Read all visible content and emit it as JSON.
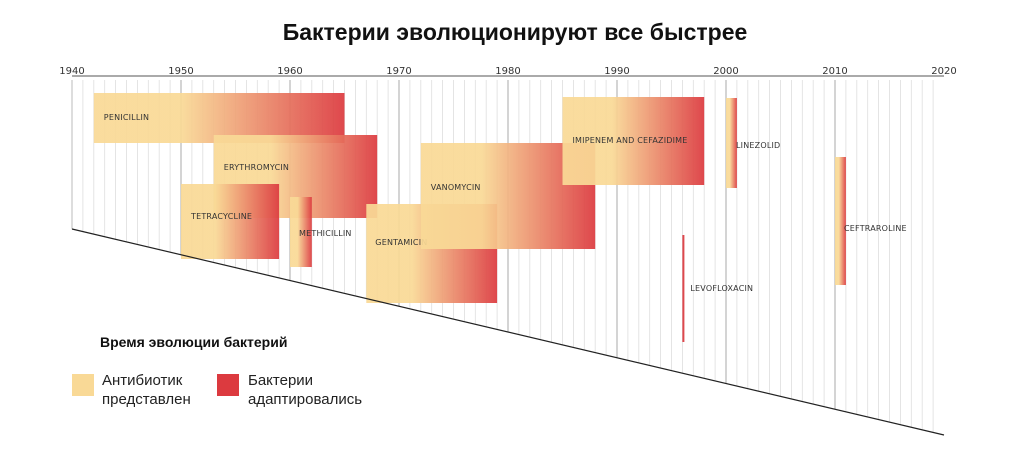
{
  "chart_data": {
    "type": "bar",
    "title": "Бактерии эволюционируют все быстрее",
    "x_ticks": [
      "1940",
      "1950",
      "1960",
      "1970",
      "1980",
      "1990",
      "2000",
      "2010",
      "2020"
    ],
    "xlim": [
      1940,
      2020
    ],
    "grid": true,
    "colors": {
      "introduced": "#f9d996",
      "resisted": "#dc3a3f"
    },
    "legend": {
      "title": "Время эволюции бактерий",
      "placement": "bottom-left",
      "introduced_line1": "Антибиотик",
      "introduced_line2": "представлен",
      "resisted_line1": "Бактерии",
      "resisted_line2": "адаптировались"
    },
    "antibiotics": [
      {
        "name": "PENICILLIN",
        "introduced": 1942,
        "resistance": 1965
      },
      {
        "name": "ERYTHROMYCIN",
        "introduced": 1953,
        "resistance": 1968
      },
      {
        "name": "TETRACYCLINE",
        "introduced": 1950,
        "resistance": 1959
      },
      {
        "name": "METHICILLIN",
        "introduced": 1960,
        "resistance": 1962
      },
      {
        "name": "GENTAMICIN",
        "introduced": 1967,
        "resistance": 1979
      },
      {
        "name": "VANOMYCIN",
        "introduced": 1972,
        "resistance": 1988
      },
      {
        "name": "IMIPENEM AND CEFAZIDIME",
        "introduced": 1985,
        "resistance": 1998
      },
      {
        "name": "LINEZOLID",
        "introduced": 2000,
        "resistance": 2001
      },
      {
        "name": "LEVOFLOXACIN",
        "introduced": 1996,
        "resistance": 1996
      },
      {
        "name": "CEFTRAROLINE",
        "introduced": 2010,
        "resistance": 2011
      }
    ]
  }
}
